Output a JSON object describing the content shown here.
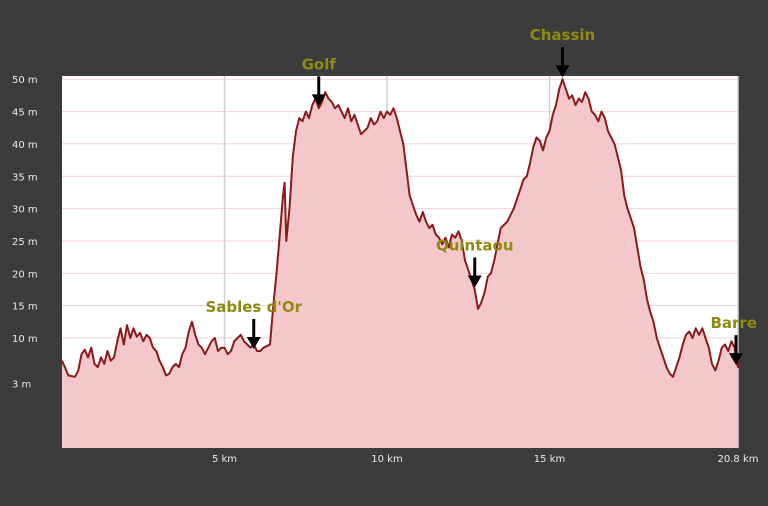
{
  "chart_data": {
    "type": "area",
    "title": "",
    "xlabel": "",
    "ylabel": "",
    "x_unit": "km",
    "y_unit": "m",
    "xlim": [
      0,
      20.8
    ],
    "ylim": [
      -7,
      50.5
    ],
    "grid": true,
    "x_ticks": [
      {
        "value": 5,
        "label": "5 km"
      },
      {
        "value": 10,
        "label": "10 km"
      },
      {
        "value": 15,
        "label": "15 km"
      },
      {
        "value": 20.8,
        "label": "20.8 km"
      }
    ],
    "y_ticks": [
      {
        "value": 3,
        "label": "3 m"
      },
      {
        "value": 10,
        "label": "10 m"
      },
      {
        "value": 15,
        "label": "15 m"
      },
      {
        "value": 20,
        "label": "20 m"
      },
      {
        "value": 25,
        "label": "25 m"
      },
      {
        "value": 30,
        "label": "30 m"
      },
      {
        "value": 35,
        "label": "35 m"
      },
      {
        "value": 40,
        "label": "40 m"
      },
      {
        "value": 45,
        "label": "45 m"
      },
      {
        "value": 50,
        "label": "50 m"
      }
    ],
    "series": [
      {
        "color": "#8b1a1a",
        "fill": "#f4c8cb",
        "points": [
          [
            0.0,
            6.5
          ],
          [
            0.2,
            4.2
          ],
          [
            0.4,
            4.0
          ],
          [
            0.5,
            5.0
          ],
          [
            0.6,
            7.5
          ],
          [
            0.7,
            8.2
          ],
          [
            0.8,
            7.0
          ],
          [
            0.9,
            8.5
          ],
          [
            1.0,
            6.0
          ],
          [
            1.1,
            5.5
          ],
          [
            1.2,
            7.0
          ],
          [
            1.3,
            6.0
          ],
          [
            1.4,
            8.0
          ],
          [
            1.5,
            6.5
          ],
          [
            1.6,
            7.0
          ],
          [
            1.7,
            9.5
          ],
          [
            1.8,
            11.5
          ],
          [
            1.9,
            9.0
          ],
          [
            2.0,
            12.0
          ],
          [
            2.1,
            10.0
          ],
          [
            2.2,
            11.5
          ],
          [
            2.3,
            10.2
          ],
          [
            2.4,
            10.8
          ],
          [
            2.5,
            9.5
          ],
          [
            2.6,
            10.5
          ],
          [
            2.7,
            10.0
          ],
          [
            2.8,
            8.5
          ],
          [
            2.9,
            8.0
          ],
          [
            3.0,
            6.5
          ],
          [
            3.1,
            5.5
          ],
          [
            3.2,
            4.2
          ],
          [
            3.3,
            4.5
          ],
          [
            3.4,
            5.5
          ],
          [
            3.5,
            6.0
          ],
          [
            3.6,
            5.5
          ],
          [
            3.7,
            7.5
          ],
          [
            3.8,
            8.5
          ],
          [
            3.9,
            11.0
          ],
          [
            4.0,
            12.5
          ],
          [
            4.1,
            10.5
          ],
          [
            4.2,
            9.0
          ],
          [
            4.3,
            8.5
          ],
          [
            4.4,
            7.5
          ],
          [
            4.5,
            8.5
          ],
          [
            4.6,
            9.5
          ],
          [
            4.7,
            10.0
          ],
          [
            4.8,
            8.0
          ],
          [
            4.9,
            8.5
          ],
          [
            5.0,
            8.5
          ],
          [
            5.1,
            7.5
          ],
          [
            5.2,
            8.0
          ],
          [
            5.3,
            9.5
          ],
          [
            5.4,
            10.0
          ],
          [
            5.5,
            10.5
          ],
          [
            5.6,
            9.5
          ],
          [
            5.7,
            9.0
          ],
          [
            5.8,
            8.5
          ],
          [
            5.9,
            9.0
          ],
          [
            6.0,
            8.0
          ],
          [
            6.1,
            8.0
          ],
          [
            6.2,
            8.5
          ],
          [
            6.4,
            9.0
          ],
          [
            6.5,
            15.0
          ],
          [
            6.6,
            20.0
          ],
          [
            6.7,
            26.0
          ],
          [
            6.8,
            32.0
          ],
          [
            6.85,
            34.0
          ],
          [
            6.9,
            25.0
          ],
          [
            7.0,
            30.0
          ],
          [
            7.1,
            38.0
          ],
          [
            7.2,
            42.0
          ],
          [
            7.3,
            44.0
          ],
          [
            7.4,
            43.5
          ],
          [
            7.5,
            45.0
          ],
          [
            7.6,
            44.0
          ],
          [
            7.7,
            46.0
          ],
          [
            7.8,
            47.0
          ],
          [
            7.9,
            45.5
          ],
          [
            8.0,
            46.5
          ],
          [
            8.1,
            48.0
          ],
          [
            8.2,
            47.0
          ],
          [
            8.3,
            46.5
          ],
          [
            8.4,
            45.5
          ],
          [
            8.5,
            46.0
          ],
          [
            8.6,
            45.0
          ],
          [
            8.7,
            44.0
          ],
          [
            8.8,
            45.5
          ],
          [
            8.9,
            43.5
          ],
          [
            9.0,
            44.5
          ],
          [
            9.1,
            43.0
          ],
          [
            9.2,
            41.5
          ],
          [
            9.3,
            42.0
          ],
          [
            9.4,
            42.5
          ],
          [
            9.5,
            44.0
          ],
          [
            9.6,
            43.0
          ],
          [
            9.7,
            43.5
          ],
          [
            9.8,
            45.0
          ],
          [
            9.9,
            44.0
          ],
          [
            10.0,
            45.0
          ],
          [
            10.1,
            44.5
          ],
          [
            10.2,
            45.5
          ],
          [
            10.3,
            44.0
          ],
          [
            10.4,
            42.0
          ],
          [
            10.5,
            40.0
          ],
          [
            10.6,
            36.0
          ],
          [
            10.7,
            32.0
          ],
          [
            10.8,
            30.5
          ],
          [
            10.9,
            29.0
          ],
          [
            11.0,
            28.0
          ],
          [
            11.1,
            29.5
          ],
          [
            11.2,
            28.0
          ],
          [
            11.3,
            27.0
          ],
          [
            11.4,
            27.5
          ],
          [
            11.5,
            26.0
          ],
          [
            11.6,
            25.5
          ],
          [
            11.7,
            24.5
          ],
          [
            11.8,
            25.5
          ],
          [
            11.9,
            24.0
          ],
          [
            12.0,
            26.0
          ],
          [
            12.1,
            25.5
          ],
          [
            12.2,
            26.5
          ],
          [
            12.3,
            25.0
          ],
          [
            12.4,
            22.0
          ],
          [
            12.5,
            20.5
          ],
          [
            12.6,
            19.0
          ],
          [
            12.7,
            17.5
          ],
          [
            12.8,
            14.5
          ],
          [
            12.9,
            15.5
          ],
          [
            13.0,
            17.0
          ],
          [
            13.1,
            19.5
          ],
          [
            13.2,
            20.0
          ],
          [
            13.3,
            22.0
          ],
          [
            13.4,
            24.5
          ],
          [
            13.5,
            27.0
          ],
          [
            13.6,
            27.5
          ],
          [
            13.7,
            28.0
          ],
          [
            13.8,
            29.0
          ],
          [
            13.9,
            30.0
          ],
          [
            14.0,
            31.5
          ],
          [
            14.1,
            33.0
          ],
          [
            14.2,
            34.5
          ],
          [
            14.3,
            35.0
          ],
          [
            14.4,
            37.0
          ],
          [
            14.5,
            39.5
          ],
          [
            14.6,
            41.0
          ],
          [
            14.7,
            40.5
          ],
          [
            14.8,
            39.0
          ],
          [
            14.9,
            41.0
          ],
          [
            15.0,
            42.0
          ],
          [
            15.1,
            44.5
          ],
          [
            15.2,
            46.0
          ],
          [
            15.3,
            48.5
          ],
          [
            15.4,
            50.0
          ],
          [
            15.5,
            48.5
          ],
          [
            15.6,
            47.0
          ],
          [
            15.7,
            47.5
          ],
          [
            15.8,
            46.0
          ],
          [
            15.9,
            47.0
          ],
          [
            16.0,
            46.5
          ],
          [
            16.1,
            48.0
          ],
          [
            16.2,
            47.0
          ],
          [
            16.3,
            45.0
          ],
          [
            16.4,
            44.5
          ],
          [
            16.5,
            43.5
          ],
          [
            16.6,
            45.0
          ],
          [
            16.7,
            44.0
          ],
          [
            16.8,
            42.0
          ],
          [
            16.9,
            41.0
          ],
          [
            17.0,
            40.0
          ],
          [
            17.1,
            38.0
          ],
          [
            17.2,
            36.0
          ],
          [
            17.3,
            32.0
          ],
          [
            17.4,
            30.0
          ],
          [
            17.5,
            28.5
          ],
          [
            17.6,
            27.0
          ],
          [
            17.7,
            24.0
          ],
          [
            17.8,
            21.0
          ],
          [
            17.9,
            19.0
          ],
          [
            18.0,
            16.0
          ],
          [
            18.1,
            14.0
          ],
          [
            18.2,
            12.5
          ],
          [
            18.3,
            10.0
          ],
          [
            18.4,
            8.5
          ],
          [
            18.5,
            7.0
          ],
          [
            18.6,
            5.5
          ],
          [
            18.7,
            4.5
          ],
          [
            18.8,
            4.0
          ],
          [
            18.9,
            5.5
          ],
          [
            19.0,
            7.0
          ],
          [
            19.1,
            9.0
          ],
          [
            19.2,
            10.5
          ],
          [
            19.3,
            11.0
          ],
          [
            19.4,
            10.0
          ],
          [
            19.5,
            11.5
          ],
          [
            19.6,
            10.5
          ],
          [
            19.7,
            11.5
          ],
          [
            19.8,
            10.0
          ],
          [
            19.9,
            8.5
          ],
          [
            20.0,
            6.0
          ],
          [
            20.1,
            5.0
          ],
          [
            20.2,
            6.5
          ],
          [
            20.3,
            8.5
          ],
          [
            20.4,
            9.0
          ],
          [
            20.5,
            8.0
          ],
          [
            20.6,
            9.5
          ],
          [
            20.7,
            8.5
          ],
          [
            20.75,
            6.5
          ],
          [
            20.8,
            5.5
          ],
          [
            20.9,
            6.0
          ],
          [
            21.0,
            5.5
          ],
          [
            21.1,
            6.0
          ],
          [
            21.2,
            6.2
          ],
          [
            21.3,
            6.5
          ]
        ]
      }
    ],
    "annotations": [
      {
        "text": "Sables d'Or",
        "x": 5.9,
        "y": 8.0
      },
      {
        "text": "Golf",
        "x": 7.9,
        "y": 45.5
      },
      {
        "text": "Quintaou",
        "x": 12.7,
        "y": 17.5
      },
      {
        "text": "Chassin",
        "x": 15.4,
        "y": 50.0
      },
      {
        "text": "Barre",
        "x": 20.8,
        "y": 5.5
      }
    ]
  }
}
